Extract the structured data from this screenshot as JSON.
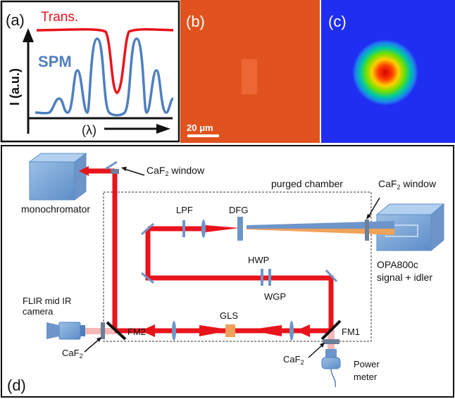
{
  "panel_a": {
    "tag": "(a)",
    "trans_label": "Trans.",
    "spm_label": "SPM",
    "y_axis_label": "I (a.u.)",
    "x_axis_label": "(λ)",
    "colors": {
      "trans": "#e8141c",
      "spm": "#4f7fbe"
    }
  },
  "panel_b": {
    "tag": "(b)",
    "scale_bar": "20 μm",
    "background": "#e0531e"
  },
  "panel_c": {
    "tag": "(c)",
    "background": "#1f2ef0"
  },
  "panel_d": {
    "tag": "(d)",
    "labels": {
      "monochromator": "monochromator",
      "caf2_window_top_main": "CaF",
      "caf2_window_top_rest": " window",
      "purged_chamber": "purged chamber",
      "caf2_window_right_main": "CaF",
      "caf2_window_right_rest": " window",
      "lpf": "LPF",
      "dfg": "DFG",
      "hwp": "HWP",
      "wgp": "WGP",
      "gls": "GLS",
      "fm1": "FM1",
      "fm2": "FM2",
      "opa_line1": "OPA800c",
      "opa_line2": "signal + idler",
      "flir_line1": "FLIR mid IR",
      "flir_line2": "camera",
      "caf2_left_main": "CaF",
      "caf2_right_main": "CaF",
      "subscript_2": "2",
      "power_line1": "Power",
      "power_line2": "meter"
    },
    "colors": {
      "beam": "#e8141c",
      "optic": "#6d95c9",
      "pump_orange": "#f0a15a",
      "box": "#7fa9d8"
    }
  }
}
